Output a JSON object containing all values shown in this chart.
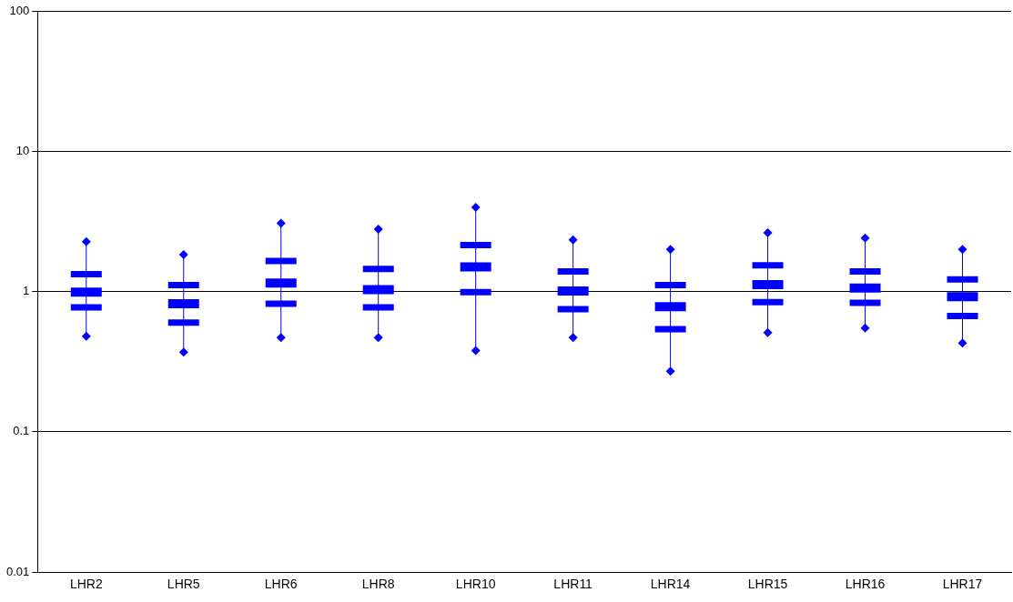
{
  "chart_data": {
    "type": "box",
    "categories": [
      "LHR2",
      "LHR5",
      "LHR6",
      "LHR8",
      "LHR10",
      "LHR11",
      "LHR14",
      "LHR15",
      "LHR16",
      "LHR17"
    ],
    "boxes": [
      {
        "low": 0.48,
        "q1": 0.77,
        "median": 0.99,
        "q3": 1.33,
        "high": 2.27
      },
      {
        "low": 0.37,
        "q1": 0.6,
        "median": 0.82,
        "q3": 1.11,
        "high": 1.83
      },
      {
        "low": 0.47,
        "q1": 0.82,
        "median": 1.15,
        "q3": 1.65,
        "high": 3.07
      },
      {
        "low": 0.47,
        "q1": 0.77,
        "median": 1.03,
        "q3": 1.45,
        "high": 2.78
      },
      {
        "low": 0.38,
        "q1": 0.99,
        "median": 1.5,
        "q3": 2.14,
        "high": 3.98
      },
      {
        "low": 0.47,
        "q1": 0.75,
        "median": 1.01,
        "q3": 1.39,
        "high": 2.34
      },
      {
        "low": 0.27,
        "q1": 0.54,
        "median": 0.78,
        "q3": 1.11,
        "high": 2.0
      },
      {
        "low": 0.51,
        "q1": 0.84,
        "median": 1.12,
        "q3": 1.54,
        "high": 2.62
      },
      {
        "low": 0.55,
        "q1": 0.83,
        "median": 1.06,
        "q3": 1.39,
        "high": 2.41
      },
      {
        "low": 0.43,
        "q1": 0.67,
        "median": 0.92,
        "q3": 1.22,
        "high": 2.0
      }
    ],
    "series": [
      {
        "type": "scatter",
        "color": "#0000ff",
        "x": [
          "LHR2",
          "LHR5",
          "LHR6",
          "LHR8",
          "LHR10",
          "LHR11",
          "LHR14",
          "LHR15",
          "LHR16",
          "LHR17"
        ],
        "values": [
          2.27,
          1.83,
          3.07,
          2.78,
          3.98,
          2.34,
          2.0,
          2.62,
          2.41,
          2.0
        ]
      },
      {
        "type": "scatter",
        "color": "#0000ff",
        "x": [
          "LHR2",
          "LHR5",
          "LHR6",
          "LHR8",
          "LHR10",
          "LHR11",
          "LHR14",
          "LHR15",
          "LHR16",
          "LHR17"
        ],
        "values": [
          0.48,
          0.37,
          0.47,
          0.47,
          0.38,
          0.47,
          0.27,
          0.51,
          0.55,
          0.43
        ]
      }
    ],
    "color": "#0000ff",
    "ylim": [
      0.01,
      100
    ],
    "yticks": [
      0.01,
      0.1,
      1,
      10,
      100
    ],
    "log": true,
    "grid": "y",
    "marker": "diamond"
  }
}
